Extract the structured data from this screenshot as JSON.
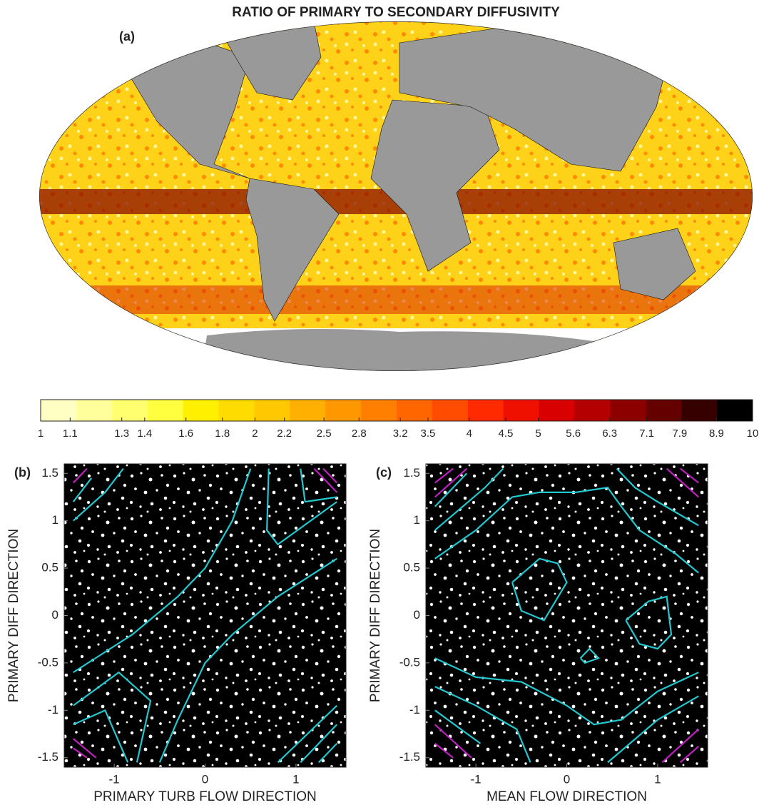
{
  "chart_data": [
    {
      "type": "map",
      "title": "RATIO OF PRIMARY TO SECONDARY DIFFUSIVITY",
      "panel_label": "(a)",
      "colorbar": {
        "scale": "log",
        "lim": [
          1,
          10
        ],
        "colors": [
          "#ffffc4",
          "#ffff9c",
          "#ffff70",
          "#ffff40",
          "#fff000",
          "#ffdc00",
          "#ffc800",
          "#ffb000",
          "#ff9800",
          "#ff8000",
          "#ff6600",
          "#ff4c00",
          "#ff2a00",
          "#f01000",
          "#d80000",
          "#b40000",
          "#8c0000",
          "#640000",
          "#360000",
          "#000000"
        ],
        "ticks": [
          1,
          1.1,
          1.3,
          1.4,
          1.6,
          1.8,
          2,
          2.2,
          2.5,
          2.8,
          3.2,
          3.5,
          4,
          4.5,
          5,
          5.6,
          6.3,
          7.1,
          7.9,
          8.9,
          10
        ]
      }
    },
    {
      "type": "scatter",
      "panel_label": "(b)",
      "xlabel": "PRIMARY TURB FLOW DIRECTION",
      "ylabel": "PRIMARY DIFF DIRECTION",
      "xlim": [
        -1.55,
        1.55
      ],
      "ylim": [
        -1.6,
        1.6
      ],
      "xticks": [
        -1,
        0,
        1
      ],
      "yticks": [
        -1.5,
        -1,
        -0.5,
        0,
        0.5,
        1,
        1.5
      ],
      "contours": [
        {
          "color": "#22c8d0",
          "x": [
            -0.5,
            -0.3,
            0,
            0.3,
            0.8,
            1.45
          ],
          "y": [
            -1.55,
            -1.1,
            -0.5,
            -0.2,
            0.2,
            0.6
          ]
        },
        {
          "color": "#22c8d0",
          "x": [
            -1.45,
            -0.8,
            -0.3,
            0,
            0.3,
            0.5
          ],
          "y": [
            -0.6,
            -0.2,
            0.2,
            0.5,
            1,
            1.55
          ]
        },
        {
          "color": "#22c8d0",
          "x": [
            -1.45,
            -1.1,
            -0.9
          ],
          "y": [
            1,
            1.3,
            1.55
          ]
        },
        {
          "color": "#22c8d0",
          "x": [
            -1.45,
            -1.25
          ],
          "y": [
            1.2,
            1.45
          ]
        },
        {
          "color": "#22c8d0",
          "x": [
            0.7,
            0.68,
            0.8,
            1.45
          ],
          "y": [
            1.55,
            0.9,
            0.75,
            1.2
          ]
        },
        {
          "color": "#22c8d0",
          "x": [
            1.05,
            1.1,
            1.45
          ],
          "y": [
            1.55,
            1.2,
            1.25
          ]
        },
        {
          "color": "#22c8d0",
          "x": [
            -1.45,
            -0.95,
            -0.6,
            -0.75
          ],
          "y": [
            -0.95,
            -0.6,
            -0.9,
            -1.55
          ]
        },
        {
          "color": "#22c8d0",
          "x": [
            -1.45,
            -1.1,
            -0.85
          ],
          "y": [
            -1.15,
            -1,
            -1.55
          ]
        },
        {
          "color": "#22c8d0",
          "x": [
            0.8,
            1.45
          ],
          "y": [
            -1.55,
            -0.95
          ]
        },
        {
          "color": "#22c8d0",
          "x": [
            1.05,
            1.45
          ],
          "y": [
            -1.55,
            -1.15
          ]
        },
        {
          "color": "#22c8d0",
          "x": [
            1.25,
            1.45
          ],
          "y": [
            -1.55,
            -1.35
          ]
        },
        {
          "color": "#c020c0",
          "x": [
            -1.45,
            -1.3
          ],
          "y": [
            1.4,
            1.55
          ]
        },
        {
          "color": "#c020c0",
          "x": [
            1.2,
            1.45
          ],
          "y": [
            1.55,
            1.3
          ]
        },
        {
          "color": "#c020c0",
          "x": [
            1.3,
            1.45
          ],
          "y": [
            1.55,
            1.4
          ]
        },
        {
          "color": "#c020c0",
          "x": [
            -1.45,
            -1.2
          ],
          "y": [
            -1.3,
            -1.5
          ]
        },
        {
          "color": "#c020c0",
          "x": [
            -1.45,
            -1.3
          ],
          "y": [
            -1.4,
            -1.5
          ]
        }
      ]
    },
    {
      "type": "scatter",
      "panel_label": "(c)",
      "xlabel": "MEAN FLOW DIRECTION",
      "ylabel": "PRIMARY DIFF DIRECTION",
      "xlim": [
        -1.55,
        1.55
      ],
      "ylim": [
        -1.6,
        1.6
      ],
      "xticks": [
        -1,
        0,
        1
      ],
      "yticks": [
        -1.5,
        -1,
        -0.5,
        0,
        0.5,
        1,
        1.5
      ],
      "contours": [
        {
          "color": "#22c8d0",
          "x": [
            -0.6,
            -0.3,
            -0.1,
            0,
            -0.25,
            -0.5,
            -0.6
          ],
          "y": [
            0.35,
            0.6,
            0.55,
            0.35,
            -0.05,
            0.05,
            0.35
          ]
        },
        {
          "color": "#22c8d0",
          "x": [
            0.65,
            0.9,
            1.1,
            1.15,
            1,
            0.8,
            0.65
          ],
          "y": [
            -0.05,
            0.15,
            0.2,
            -0.2,
            -0.35,
            -0.3,
            -0.05
          ]
        },
        {
          "color": "#22c8d0",
          "x": [
            0.15,
            0.25,
            0.35,
            0.2,
            0.15
          ],
          "y": [
            -0.45,
            -0.35,
            -0.45,
            -0.5,
            -0.45
          ]
        },
        {
          "color": "#22c8d0",
          "x": [
            -1.45,
            -1,
            -0.6,
            -0.3,
            0.1,
            0.45,
            0.6,
            0.8,
            1.2,
            1.45
          ],
          "y": [
            0.6,
            0.9,
            1.25,
            1.3,
            1.3,
            1.35,
            1.15,
            0.9,
            0.65,
            0.45
          ]
        },
        {
          "color": "#22c8d0",
          "x": [
            -1.45,
            -0.9,
            -0.7
          ],
          "y": [
            0.9,
            1.35,
            1.55
          ]
        },
        {
          "color": "#22c8d0",
          "x": [
            -1.45,
            -1.1
          ],
          "y": [
            1.15,
            1.5
          ]
        },
        {
          "color": "#22c8d0",
          "x": [
            0.55,
            0.75,
            1,
            1.45
          ],
          "y": [
            1.55,
            1.35,
            1.2,
            0.95
          ]
        },
        {
          "color": "#22c8d0",
          "x": [
            -1.45,
            -1,
            -0.5,
            0,
            0.3,
            0.6,
            1,
            1.45
          ],
          "y": [
            -0.45,
            -0.65,
            -0.7,
            -0.95,
            -1.15,
            -1.1,
            -0.8,
            -0.6
          ]
        },
        {
          "color": "#22c8d0",
          "x": [
            -1.45,
            -1,
            -0.55,
            -0.4
          ],
          "y": [
            -0.75,
            -0.95,
            -1.2,
            -1.55
          ]
        },
        {
          "color": "#22c8d0",
          "x": [
            0.45,
            1,
            1.45
          ],
          "y": [
            -1.55,
            -1.1,
            -0.85
          ]
        },
        {
          "color": "#22c8d0",
          "x": [
            -1.45,
            -0.95
          ],
          "y": [
            -1,
            -1.35
          ]
        },
        {
          "color": "#c020c0",
          "x": [
            -1.45,
            -1.1
          ],
          "y": [
            1.25,
            1.55
          ]
        },
        {
          "color": "#c020c0",
          "x": [
            -1.45,
            -1.25
          ],
          "y": [
            1.4,
            1.55
          ]
        },
        {
          "color": "#c020c0",
          "x": [
            1.1,
            1.45
          ],
          "y": [
            1.55,
            1.25
          ]
        },
        {
          "color": "#c020c0",
          "x": [
            1.25,
            1.45
          ],
          "y": [
            1.55,
            1.4
          ]
        },
        {
          "color": "#c020c0",
          "x": [
            -1.45,
            -1.05
          ],
          "y": [
            -1.15,
            -1.5
          ]
        },
        {
          "color": "#c020c0",
          "x": [
            -1.45,
            -1.25
          ],
          "y": [
            -1.35,
            -1.5
          ]
        },
        {
          "color": "#c020c0",
          "x": [
            1.05,
            1.45
          ],
          "y": [
            -1.55,
            -1.2
          ]
        },
        {
          "color": "#c020c0",
          "x": [
            1.25,
            1.45
          ],
          "y": [
            -1.55,
            -1.38
          ]
        }
      ]
    }
  ]
}
